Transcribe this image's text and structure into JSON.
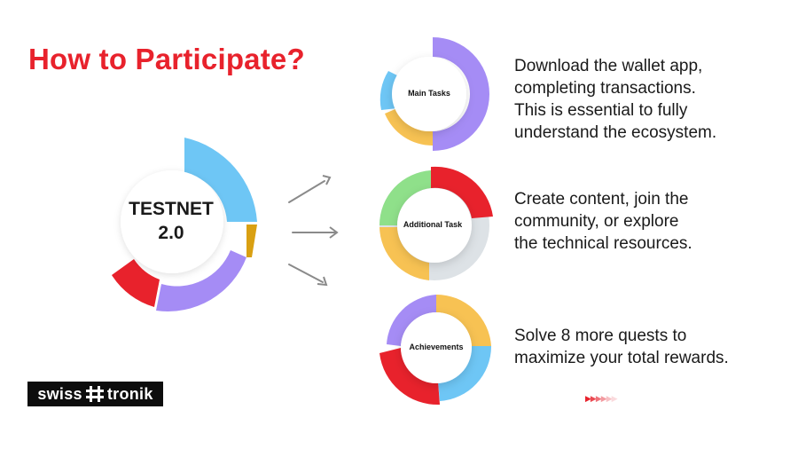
{
  "title": "How to Participate?",
  "hub": {
    "line1": "TESTNET",
    "line2": "2.0"
  },
  "steps": [
    {
      "label": "Main Tasks",
      "description": [
        "Download the wallet app,",
        "completing transactions.",
        "This is essential to fully",
        "understand the ecosystem."
      ]
    },
    {
      "label": "Additional Task",
      "description": [
        "Create content, join the",
        "community, or explore",
        "the technical resources."
      ]
    },
    {
      "label": "Achievements",
      "description": [
        "Solve 8 more quests to",
        "maximize your total rewards."
      ]
    }
  ],
  "logo": {
    "left": "swiss",
    "right": "tronik"
  },
  "colors": {
    "title": "#e8222c",
    "blue": "#6ec6f5",
    "purple": "#a58cf5",
    "red": "#e8222c",
    "gold": "#d9a012",
    "yellow": "#f7c253",
    "green": "#8fe08a",
    "grey": "#dde2e6"
  },
  "icons": [
    "arrow-icon",
    "hash-icon",
    "chevron-icon"
  ]
}
